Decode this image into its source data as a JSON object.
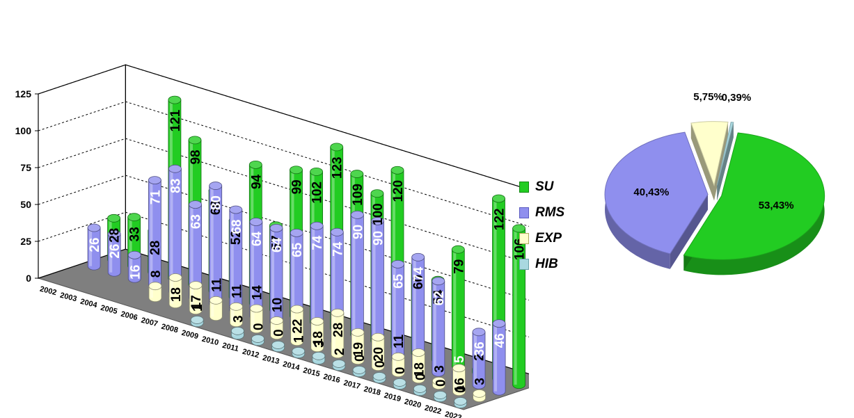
{
  "chart_data": [
    {
      "type": "bar",
      "categories": [
        "2002",
        "2003",
        "2004",
        "2005",
        "2006",
        "2007",
        "2008",
        "2009",
        "2010",
        "2011",
        "2012",
        "2013",
        "2014",
        "2015",
        "2016",
        "2017",
        "2018",
        "2019",
        "2020",
        "2022",
        "2023"
      ],
      "yticks": [
        "0",
        "25",
        "50",
        "75",
        "100",
        "125"
      ],
      "ylim": [
        0,
        125
      ],
      "grid": true,
      "legend_position": "right",
      "series": [
        {
          "name": "SU",
          "color": "#22cc22",
          "values": [
            28,
            33,
            28,
            121,
            98,
            68,
            52,
            94,
            57,
            99,
            102,
            123,
            109,
            100,
            120,
            60,
            54,
            79,
            2,
            122,
            106
          ]
        },
        {
          "name": "RMS",
          "color": "#8f8fee",
          "values": [
            26,
            26,
            16,
            71,
            83,
            63,
            80,
            68,
            64,
            64,
            65,
            74,
            74,
            90,
            90,
            65,
            74,
            62,
            5,
            36,
            46
          ]
        },
        {
          "name": "EXP",
          "color": "#ffffcc",
          "values": [
            null,
            null,
            null,
            null,
            8,
            18,
            17,
            11,
            11,
            14,
            10,
            22,
            18,
            28,
            19,
            20,
            11,
            18,
            3,
            16,
            3
          ]
        },
        {
          "name": "HIB",
          "color": "#a9d8e0",
          "values": [
            null,
            null,
            null,
            null,
            null,
            null,
            null,
            1,
            null,
            3,
            0,
            0,
            1,
            3,
            2,
            0,
            0,
            0,
            0,
            0,
            0
          ]
        }
      ]
    },
    {
      "type": "pie",
      "slices": [
        {
          "name": "SU",
          "percent": 53.43,
          "label": "53,43%",
          "color": "#22cc22"
        },
        {
          "name": "RMS",
          "percent": 40.43,
          "label": "40,43%",
          "color": "#8f8fee"
        },
        {
          "name": "EXP",
          "percent": 5.75,
          "label": "5,75%",
          "color": "#ffffcc"
        },
        {
          "name": "HIB",
          "percent": 0.39,
          "label": "0,39%",
          "color": "#a9d8e0"
        }
      ]
    }
  ]
}
